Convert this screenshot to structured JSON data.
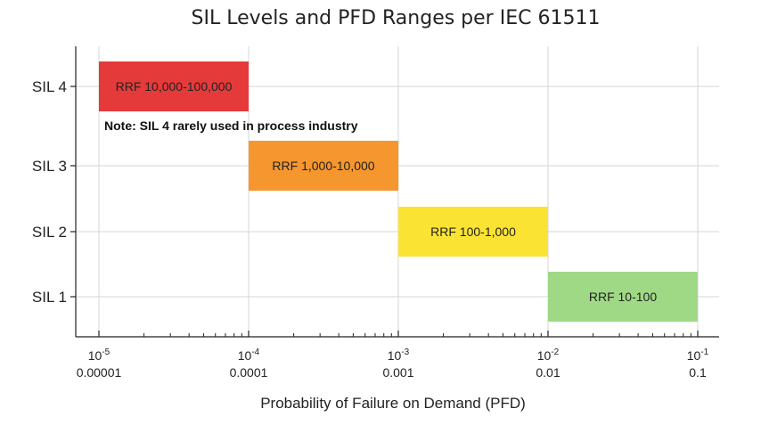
{
  "chart_data": {
    "type": "bar",
    "orientation": "horizontal",
    "title": "SIL Levels and PFD Ranges per IEC 61511",
    "xlabel": "Probability of Failure on Demand (PFD)",
    "ylabel": "",
    "xscale": "log",
    "xlim": [
      1e-05,
      0.1
    ],
    "grid": true,
    "x_ticks": [
      {
        "base": "10",
        "exp": "-5",
        "label": "0.00001",
        "value": 1e-05
      },
      {
        "base": "10",
        "exp": "-4",
        "label": "0.0001",
        "value": 0.0001
      },
      {
        "base": "10",
        "exp": "-3",
        "label": "0.001",
        "value": 0.001
      },
      {
        "base": "10",
        "exp": "-2",
        "label": "0.01",
        "value": 0.01
      },
      {
        "base": "10",
        "exp": "-1",
        "label": "0.1",
        "value": 0.1
      }
    ],
    "categories": [
      "SIL 4",
      "SIL 3",
      "SIL 2",
      "SIL 1"
    ],
    "bars": [
      {
        "category": "SIL 4",
        "pfd_min": 1e-05,
        "pfd_max": 0.0001,
        "label": "RRF 10,000-100,000",
        "color": "#e53a3a"
      },
      {
        "category": "SIL 3",
        "pfd_min": 0.0001,
        "pfd_max": 0.001,
        "label": "RRF 1,000-10,000",
        "color": "#f5962e"
      },
      {
        "category": "SIL 2",
        "pfd_min": 0.001,
        "pfd_max": 0.01,
        "label": "RRF 100-1,000",
        "color": "#fbe334"
      },
      {
        "category": "SIL 1",
        "pfd_min": 0.01,
        "pfd_max": 0.1,
        "label": "RRF 10-100",
        "color": "#9fd986"
      }
    ],
    "annotation": "Note: SIL 4 rarely used in process industry"
  }
}
